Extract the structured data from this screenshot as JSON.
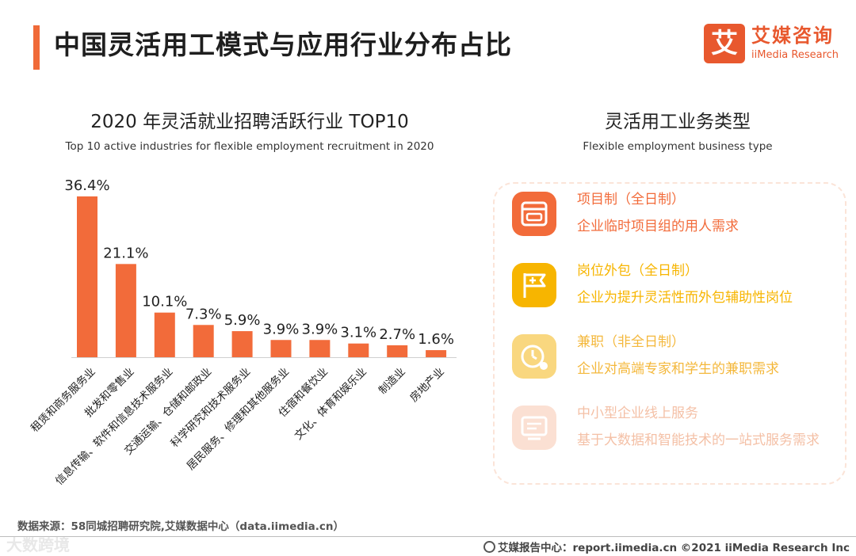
{
  "header": {
    "title": "中国灵活用工模式与应用行业分布占比",
    "logo_mark": "艾",
    "logo_cn": "艾媒咨询",
    "logo_en": "iiMedia Research"
  },
  "chart_data": {
    "type": "bar",
    "title": "2020 年灵活就业招聘活跃行业 TOP10",
    "subtitle": "Top 10 active industries for flexible employment recruitment in 2020",
    "categories": [
      "租赁和商务服务业",
      "批发和零售业",
      "信息传输、软件和信息技术服务业",
      "交通运输、仓储和邮政业",
      "科学研究和技术服务业",
      "居民服务、修理和其他服务业",
      "住宿和餐饮业",
      "文化、体育和娱乐业",
      "制造业",
      "房地产业"
    ],
    "values": [
      36.4,
      21.1,
      10.1,
      7.3,
      5.9,
      3.9,
      3.9,
      3.1,
      2.7,
      1.6
    ],
    "value_labels": [
      "36.4%",
      "21.1%",
      "10.1%",
      "7.3%",
      "5.9%",
      "3.9%",
      "3.9%",
      "3.1%",
      "2.7%",
      "1.6%"
    ],
    "unit": "%",
    "ylim": [
      0,
      36.4
    ],
    "xlabel": "",
    "ylabel": "",
    "grid": false,
    "bar_color": "#f26b3a"
  },
  "business_types": {
    "title": "灵活用工业务类型",
    "subtitle": "Flexible employment business type",
    "items": [
      {
        "name": "项目制（全日制）",
        "desc": "企业临时项目组的用人需求",
        "color": "#f26b3a",
        "icon": "browser-window-icon"
      },
      {
        "name": "岗位外包（全日制）",
        "desc": "企业为提升灵活性而外包辅助性岗位",
        "color": "#f7b500",
        "icon": "flag-plus-icon"
      },
      {
        "name": "兼职（非全日制）",
        "desc": "企业对高端专家和学生的兼职需求",
        "color": "#f9c74f",
        "icon": "clock-icon"
      },
      {
        "name": "中小型企业线上服务",
        "desc": "基于大数据和智能技术的一站式服务需求",
        "color": "#f6c6ae",
        "icon": "monitor-icon"
      }
    ]
  },
  "footer": {
    "source": "数据来源：58同城招聘研究院,艾媒数据中心（data.iimedia.cn）",
    "watermark": "大数跨境",
    "credit": "艾媒报告中心：report.iimedia.cn  ©2021  iiMedia Research  Inc"
  }
}
